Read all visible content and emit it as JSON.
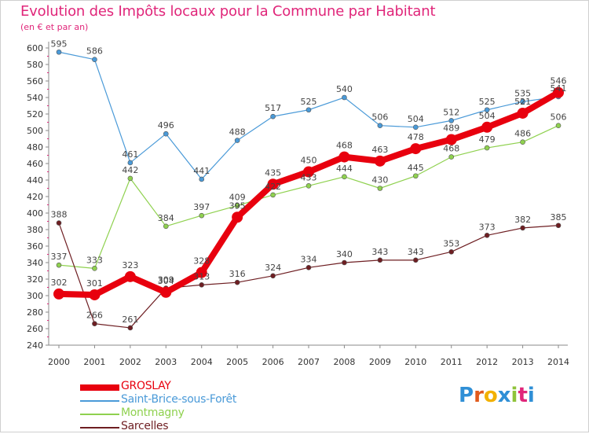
{
  "title": "Evolution des Impôts locaux pour la Commune par Habitant",
  "subtitle": "(en € et par an)",
  "logo_text": "Proxiti",
  "chart_data": {
    "type": "line",
    "title": "Evolution des Impôts locaux pour la Commune par Habitant",
    "subtitle": "(en € et par an)",
    "xlabel": "",
    "ylabel": "",
    "ylim": [
      240,
      600
    ],
    "ytick_step": 20,
    "grid": false,
    "legend_position": "bottom-left",
    "categories": [
      "2000",
      "2001",
      "2002",
      "2003",
      "2004",
      "2005",
      "2006",
      "2007",
      "2008",
      "2009",
      "2010",
      "2011",
      "2012",
      "2013",
      "2014"
    ],
    "series": [
      {
        "name": "Saint-Brice-sous-Forêt",
        "color": "#4a9ad8",
        "values": [
          595,
          586,
          461,
          496,
          441,
          488,
          517,
          525,
          540,
          506,
          504,
          512,
          525,
          535,
          541
        ]
      },
      {
        "name": "Montmagny",
        "color": "#8fd14f",
        "values": [
          337,
          333,
          442,
          384,
          397,
          409,
          422,
          433,
          444,
          430,
          445,
          468,
          479,
          486,
          506
        ]
      },
      {
        "name": "Sarcelles",
        "color": "#6e1e22",
        "values": [
          388,
          266,
          261,
          309,
          313,
          316,
          324,
          334,
          340,
          343,
          343,
          353,
          373,
          382,
          385
        ]
      },
      {
        "name": "GROSLAY",
        "color": "#e8000e",
        "values": [
          302,
          301,
          323,
          304,
          328,
          395,
          435,
          450,
          468,
          463,
          478,
          489,
          504,
          521,
          546
        ]
      }
    ]
  },
  "legend": [
    {
      "name": "GROSLAY",
      "color": "#e8000e"
    },
    {
      "name": "Saint-Brice-sous-Forêt",
      "color": "#4a9ad8"
    },
    {
      "name": "Montmagny",
      "color": "#8fd14f"
    },
    {
      "name": "Sarcelles",
      "color": "#6e1e22"
    }
  ]
}
